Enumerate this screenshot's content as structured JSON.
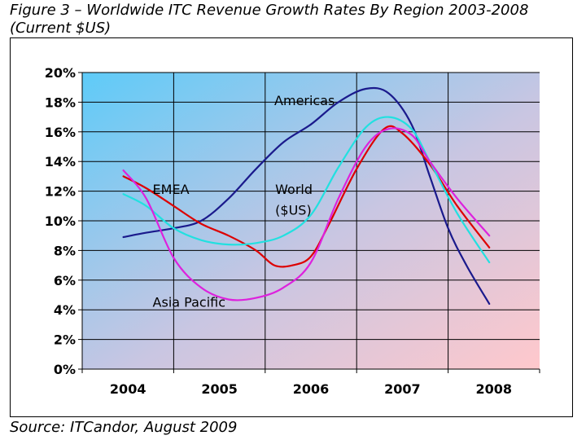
{
  "figure": {
    "title_line1": "Figure 3 – Worldwide ITC Revenue Growth Rates By Region 2003-2008",
    "title_line2": "(Current $US)",
    "source": "Source: ITCandor, August 2009"
  },
  "chart_data": {
    "type": "line",
    "categories": [
      "2004",
      "2005",
      "2006",
      "2007",
      "2008"
    ],
    "ylim": [
      0,
      20
    ],
    "y_ticks": [
      "0%",
      "2%",
      "4%",
      "6%",
      "8%",
      "10%",
      "12%",
      "14%",
      "16%",
      "18%",
      "20%"
    ],
    "grid": true,
    "legend": "none",
    "series": [
      {
        "name": "Americas",
        "color": "#1a1a8c",
        "x": [
          2003.95,
          2004.2,
          2004.5,
          2004.8,
          2005.1,
          2005.4,
          2005.7,
          2006.0,
          2006.3,
          2006.6,
          2006.85,
          2007.1,
          2007.3,
          2007.5,
          2007.7,
          2007.95
        ],
        "values": [
          8.9,
          9.2,
          9.5,
          10.0,
          11.5,
          13.5,
          15.3,
          16.5,
          18.0,
          18.9,
          18.6,
          16.5,
          13.0,
          9.5,
          7.0,
          4.4
        ]
      },
      {
        "name": "EMEA",
        "color": "#dd0000",
        "x": [
          2003.95,
          2004.2,
          2004.5,
          2004.8,
          2005.1,
          2005.4,
          2005.6,
          2005.8,
          2006.0,
          2006.2,
          2006.5,
          2006.8,
          2007.0,
          2007.3,
          2007.6,
          2007.95
        ],
        "values": [
          13.0,
          12.2,
          11.0,
          9.8,
          9.0,
          8.0,
          7.0,
          7.0,
          7.6,
          9.8,
          13.5,
          16.2,
          15.9,
          13.8,
          11.0,
          8.2
        ]
      },
      {
        "name": "World ($US)",
        "color": "#22e0e0",
        "x": [
          2003.95,
          2004.2,
          2004.5,
          2004.8,
          2005.1,
          2005.4,
          2005.7,
          2006.0,
          2006.3,
          2006.6,
          2006.85,
          2007.1,
          2007.3,
          2007.6,
          2007.95
        ],
        "values": [
          11.8,
          11.0,
          9.5,
          8.7,
          8.4,
          8.5,
          9.0,
          10.4,
          13.6,
          16.3,
          17.0,
          16.2,
          14.0,
          10.5,
          7.2
        ]
      },
      {
        "name": "Asia Pacific",
        "color": "#dd22dd",
        "x": [
          2003.95,
          2004.2,
          2004.5,
          2004.8,
          2005.1,
          2005.4,
          2005.7,
          2006.0,
          2006.3,
          2006.6,
          2006.85,
          2007.1,
          2007.3,
          2007.6,
          2007.95
        ],
        "values": [
          13.4,
          11.5,
          7.5,
          5.5,
          4.7,
          4.8,
          5.5,
          7.2,
          11.5,
          15.0,
          16.2,
          15.8,
          14.0,
          11.5,
          9.0
        ]
      }
    ],
    "annotations": [
      {
        "text": "Americas",
        "x": 2005.6,
        "y": 17.8
      },
      {
        "text": "EMEA",
        "x": 2004.27,
        "y": 11.8
      },
      {
        "text": "World",
        "x": 2005.61,
        "y": 11.8
      },
      {
        "text": "($US)",
        "x": 2005.61,
        "y": 10.4
      },
      {
        "text": "Asia Pacific",
        "x": 2004.27,
        "y": 4.2
      }
    ]
  }
}
